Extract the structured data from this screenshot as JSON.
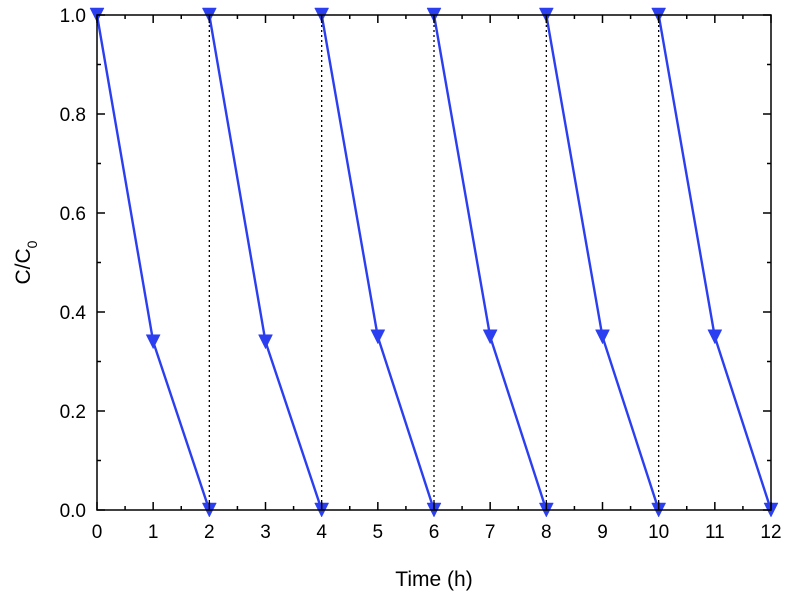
{
  "chart_data": {
    "type": "line",
    "xlabel": "Time (h)",
    "ylabel": {
      "main": "C/C",
      "subscript": "0"
    },
    "xlim": [
      0,
      12
    ],
    "ylim": [
      0,
      1.0
    ],
    "xticks": [
      "0",
      "1",
      "2",
      "3",
      "4",
      "5",
      "6",
      "7",
      "8",
      "9",
      "10",
      "11",
      "12"
    ],
    "yticks": [
      "0.0",
      "0.2",
      "0.4",
      "0.6",
      "0.8",
      "1.0"
    ],
    "grid": false,
    "series": [
      {
        "marker": "triangle-down",
        "color": "#2b3ff0",
        "segments": [
          [
            [
              0,
              1.0
            ],
            [
              1,
              0.34
            ],
            [
              2,
              0.0
            ]
          ],
          [
            [
              2,
              1.0
            ],
            [
              3,
              0.34
            ],
            [
              4,
              0.0
            ]
          ],
          [
            [
              4,
              1.0
            ],
            [
              5,
              0.35
            ],
            [
              6,
              0.0
            ]
          ],
          [
            [
              6,
              1.0
            ],
            [
              7,
              0.35
            ],
            [
              8,
              0.0
            ]
          ],
          [
            [
              8,
              1.0
            ],
            [
              9,
              0.35
            ],
            [
              10,
              0.0
            ]
          ],
          [
            [
              10,
              1.0
            ],
            [
              11,
              0.35
            ],
            [
              12,
              0.0
            ]
          ]
        ]
      }
    ],
    "cycle_separators": {
      "x": [
        2,
        4,
        6,
        8,
        10
      ],
      "style": "dotted",
      "color": "#000000"
    }
  }
}
